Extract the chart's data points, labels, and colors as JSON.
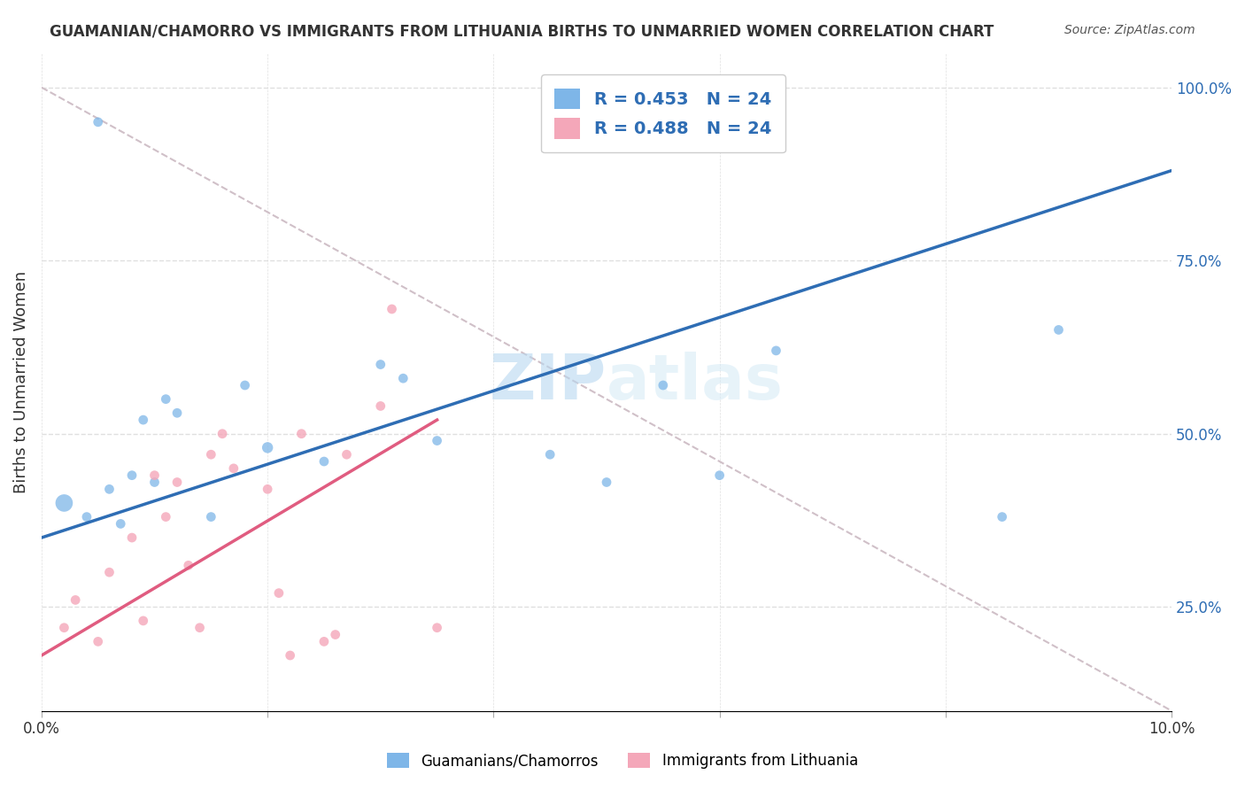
{
  "title": "GUAMANIAN/CHAMORRO VS IMMIGRANTS FROM LITHUANIA BIRTHS TO UNMARRIED WOMEN CORRELATION CHART",
  "source": "Source: ZipAtlas.com",
  "ylabel": "Births to Unmarried Women",
  "xlim": [
    0.0,
    10.0
  ],
  "ylim": [
    10.0,
    105.0
  ],
  "x_ticks": [
    0.0,
    2.0,
    4.0,
    6.0,
    8.0,
    10.0
  ],
  "y_ticks_right": [
    25.0,
    50.0,
    75.0,
    100.0
  ],
  "y_tick_labels_right": [
    "25.0%",
    "50.0%",
    "75.0%",
    "100.0%"
  ],
  "legend_label1": "Guamanians/Chamorros",
  "legend_label2": "Immigrants from Lithuania",
  "r1": 0.453,
  "n1": 24,
  "r2": 0.488,
  "n2": 24,
  "color_blue": "#7EB6E8",
  "color_pink": "#F4A7B9",
  "color_blue_line": "#2E6DB4",
  "color_pink_line": "#E05C80",
  "color_diag": "#D0C0C8",
  "watermark_zip": "ZIP",
  "watermark_atlas": "atlas",
  "blue_scatter_x": [
    0.2,
    0.4,
    0.5,
    0.6,
    0.7,
    0.8,
    0.9,
    1.0,
    1.1,
    1.2,
    1.5,
    1.8,
    2.0,
    2.5,
    3.0,
    3.2,
    3.5,
    4.5,
    5.0,
    5.5,
    6.0,
    6.5,
    8.5,
    9.0
  ],
  "blue_scatter_y": [
    40,
    38,
    95,
    42,
    37,
    44,
    52,
    43,
    55,
    53,
    38,
    57,
    48,
    46,
    60,
    58,
    49,
    47,
    43,
    57,
    44,
    62,
    38,
    65
  ],
  "blue_scatter_size": [
    200,
    60,
    60,
    60,
    60,
    60,
    60,
    60,
    60,
    60,
    60,
    60,
    80,
    60,
    60,
    60,
    60,
    60,
    60,
    60,
    60,
    60,
    60,
    60
  ],
  "pink_scatter_x": [
    0.2,
    0.3,
    0.5,
    0.6,
    0.8,
    0.9,
    1.0,
    1.1,
    1.2,
    1.3,
    1.4,
    1.5,
    1.6,
    1.7,
    2.0,
    2.1,
    2.2,
    2.3,
    2.5,
    2.6,
    2.7,
    3.0,
    3.1,
    3.5
  ],
  "pink_scatter_y": [
    22,
    26,
    20,
    30,
    35,
    23,
    44,
    38,
    43,
    31,
    22,
    47,
    50,
    45,
    42,
    27,
    18,
    50,
    20,
    21,
    47,
    54,
    68,
    22
  ],
  "pink_scatter_size": [
    60,
    60,
    60,
    60,
    60,
    60,
    60,
    60,
    60,
    60,
    60,
    60,
    60,
    60,
    60,
    60,
    60,
    60,
    60,
    60,
    60,
    60,
    60,
    60
  ],
  "blue_line_x": [
    0.0,
    10.0
  ],
  "blue_line_y": [
    35.0,
    88.0
  ],
  "pink_line_x": [
    0.0,
    3.5
  ],
  "pink_line_y": [
    18.0,
    52.0
  ],
  "diag_line_x": [
    0.0,
    10.0
  ],
  "diag_line_y": [
    100.0,
    10.0
  ],
  "background_color": "#FFFFFF",
  "grid_color": "#E0E0E0"
}
